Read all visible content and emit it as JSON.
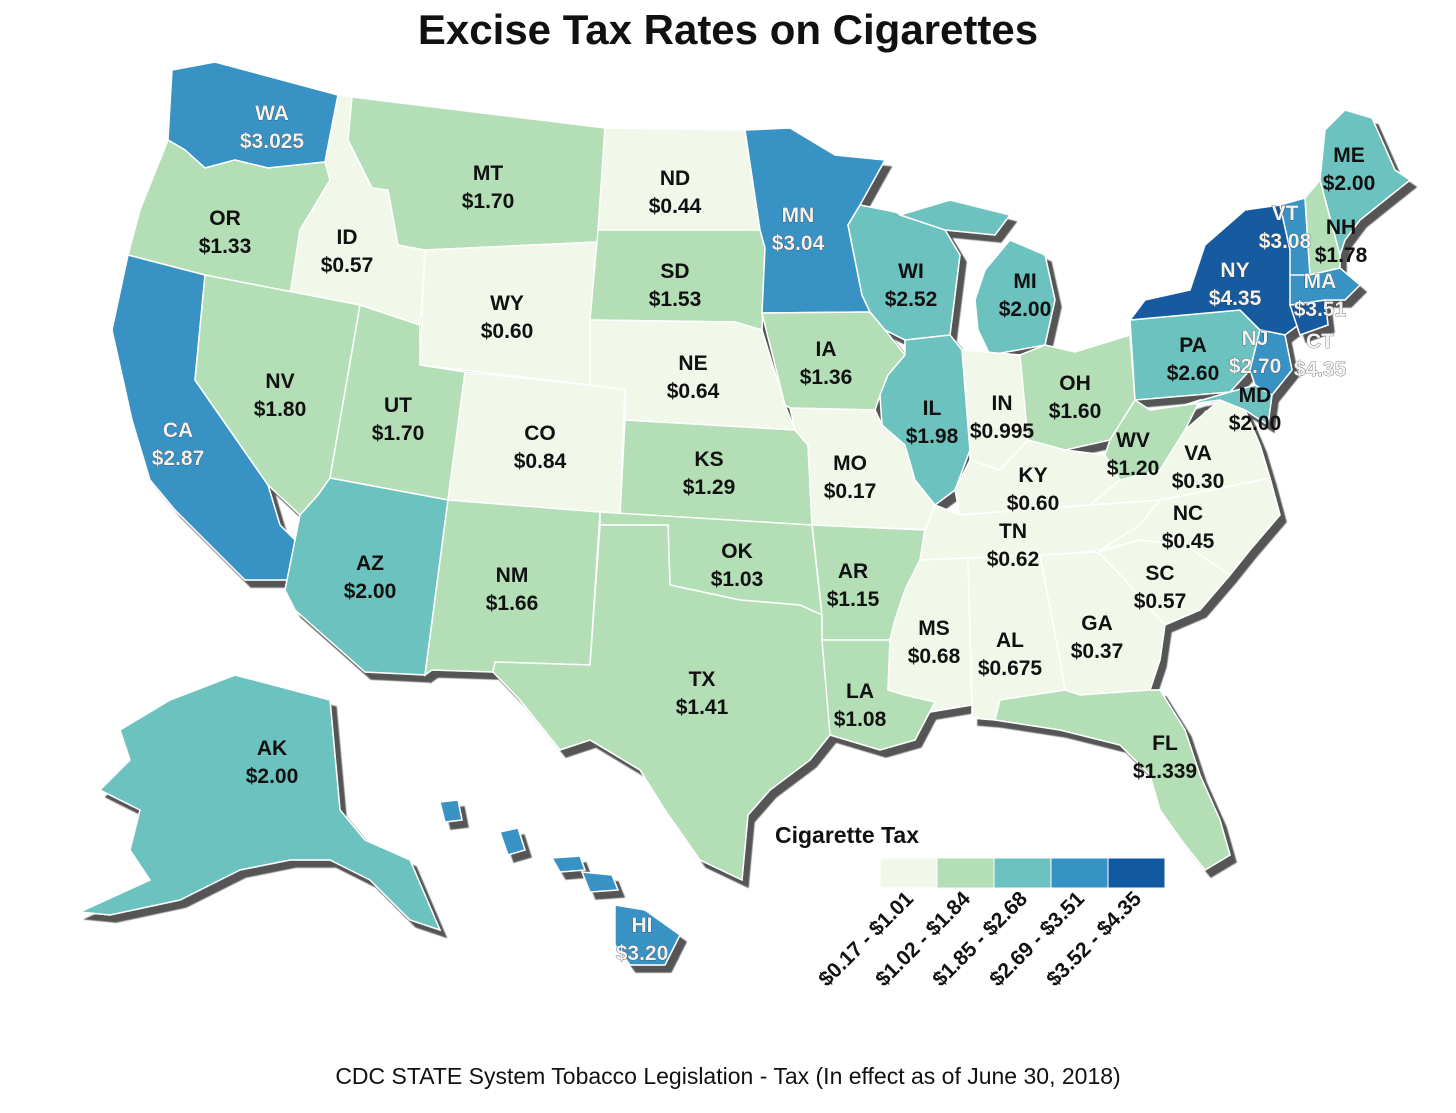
{
  "title": "Excise Tax Rates on Cigarettes",
  "source": "CDC STATE System Tobacco Legislation - Tax (In effect as of June 30, 2018)",
  "legend": {
    "title": "Cigarette Tax",
    "classes": [
      {
        "label": "$0.17 - $1.01",
        "color": "#f1f8ea"
      },
      {
        "label": "$1.02 - $1.84",
        "color": "#b3deb6"
      },
      {
        "label": "$1.85 - $2.68",
        "color": "#6cc2bf"
      },
      {
        "label": "$2.69 - $3.51",
        "color": "#3792c4"
      },
      {
        "label": "$3.52 - $4.35",
        "color": "#125aa0"
      }
    ]
  },
  "states": [
    {
      "abbr": "WA",
      "rate": "$3.025",
      "value": 3.025
    },
    {
      "abbr": "OR",
      "rate": "$1.33",
      "value": 1.33
    },
    {
      "abbr": "CA",
      "rate": "$2.87",
      "value": 2.87
    },
    {
      "abbr": "ID",
      "rate": "$0.57",
      "value": 0.57
    },
    {
      "abbr": "NV",
      "rate": "$1.80",
      "value": 1.8
    },
    {
      "abbr": "MT",
      "rate": "$1.70",
      "value": 1.7
    },
    {
      "abbr": "WY",
      "rate": "$0.60",
      "value": 0.6
    },
    {
      "abbr": "UT",
      "rate": "$1.70",
      "value": 1.7
    },
    {
      "abbr": "AZ",
      "rate": "$2.00",
      "value": 2.0
    },
    {
      "abbr": "CO",
      "rate": "$0.84",
      "value": 0.84
    },
    {
      "abbr": "NM",
      "rate": "$1.66",
      "value": 1.66
    },
    {
      "abbr": "ND",
      "rate": "$0.44",
      "value": 0.44
    },
    {
      "abbr": "SD",
      "rate": "$1.53",
      "value": 1.53
    },
    {
      "abbr": "NE",
      "rate": "$0.64",
      "value": 0.64
    },
    {
      "abbr": "KS",
      "rate": "$1.29",
      "value": 1.29
    },
    {
      "abbr": "OK",
      "rate": "$1.03",
      "value": 1.03
    },
    {
      "abbr": "TX",
      "rate": "$1.41",
      "value": 1.41
    },
    {
      "abbr": "MN",
      "rate": "$3.04",
      "value": 3.04
    },
    {
      "abbr": "IA",
      "rate": "$1.36",
      "value": 1.36
    },
    {
      "abbr": "MO",
      "rate": "$0.17",
      "value": 0.17
    },
    {
      "abbr": "AR",
      "rate": "$1.15",
      "value": 1.15
    },
    {
      "abbr": "LA",
      "rate": "$1.08",
      "value": 1.08
    },
    {
      "abbr": "WI",
      "rate": "$2.52",
      "value": 2.52
    },
    {
      "abbr": "IL",
      "rate": "$1.98",
      "value": 1.98
    },
    {
      "abbr": "MI",
      "rate": "$2.00",
      "value": 2.0
    },
    {
      "abbr": "IN",
      "rate": "$0.995",
      "value": 0.995
    },
    {
      "abbr": "OH",
      "rate": "$1.60",
      "value": 1.6
    },
    {
      "abbr": "KY",
      "rate": "$0.60",
      "value": 0.6
    },
    {
      "abbr": "TN",
      "rate": "$0.62",
      "value": 0.62
    },
    {
      "abbr": "MS",
      "rate": "$0.68",
      "value": 0.68
    },
    {
      "abbr": "AL",
      "rate": "$0.675",
      "value": 0.675
    },
    {
      "abbr": "GA",
      "rate": "$0.37",
      "value": 0.37
    },
    {
      "abbr": "FL",
      "rate": "$1.339",
      "value": 1.339
    },
    {
      "abbr": "SC",
      "rate": "$0.57",
      "value": 0.57
    },
    {
      "abbr": "NC",
      "rate": "$0.45",
      "value": 0.45
    },
    {
      "abbr": "VA",
      "rate": "$0.30",
      "value": 0.3
    },
    {
      "abbr": "WV",
      "rate": "$1.20",
      "value": 1.2
    },
    {
      "abbr": "PA",
      "rate": "$2.60",
      "value": 2.6
    },
    {
      "abbr": "NY",
      "rate": "$4.35",
      "value": 4.35
    },
    {
      "abbr": "NJ",
      "rate": "$2.70",
      "value": 2.7
    },
    {
      "abbr": "MD",
      "rate": "$2.00",
      "value": 2.0
    },
    {
      "abbr": "CT",
      "rate": "$4.35",
      "value": 4.35
    },
    {
      "abbr": "MA",
      "rate": "$3.51",
      "value": 3.51
    },
    {
      "abbr": "VT",
      "rate": "$3.08",
      "value": 3.08
    },
    {
      "abbr": "NH",
      "rate": "$1.78",
      "value": 1.78
    },
    {
      "abbr": "ME",
      "rate": "$2.00",
      "value": 2.0
    },
    {
      "abbr": "AK",
      "rate": "$2.00",
      "value": 2.0
    },
    {
      "abbr": "HI",
      "rate": "$3.20",
      "value": 3.2
    }
  ]
}
